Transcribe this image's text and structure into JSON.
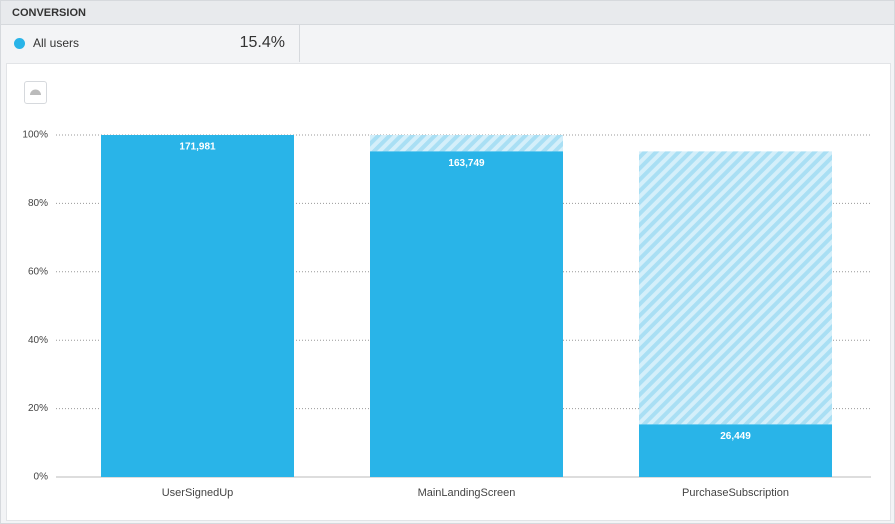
{
  "header": {
    "title": "CONVERSION",
    "segment": "All users",
    "conversion": "15.4%"
  },
  "chart_data": {
    "type": "funnel",
    "categories": [
      "UserSignedUp",
      "MainLandingScreen",
      "PurchaseSubscription"
    ],
    "values": [
      100,
      95.21,
      15.38
    ],
    "count_labels": [
      "171,981",
      "163,749",
      "26,449"
    ],
    "color": "#29b4e8",
    "ylim": [
      0,
      100
    ],
    "yticks": [
      {
        "value": 0,
        "label": "0%"
      },
      {
        "value": 20,
        "label": "20%"
      },
      {
        "value": 40,
        "label": "40%"
      },
      {
        "value": 60,
        "label": "60%"
      },
      {
        "value": 80,
        "label": "80%"
      },
      {
        "value": 100,
        "label": "100%"
      }
    ],
    "grid": true
  }
}
